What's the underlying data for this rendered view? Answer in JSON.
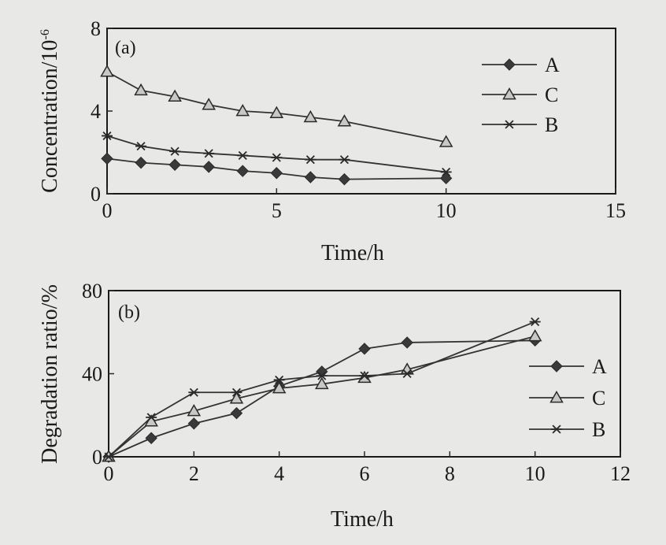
{
  "chart_data": [
    {
      "type": "line",
      "panel_label": "(a)",
      "title": "",
      "xlabel": "Time/h",
      "ylabel": "Concentration/10",
      "ylabel_sup": "-6",
      "xlim": [
        0,
        15
      ],
      "ylim": [
        0,
        8
      ],
      "xticks": [
        0,
        5,
        10,
        15
      ],
      "yticks": [
        0,
        4,
        8
      ],
      "grid": false,
      "legend_position": "top-right",
      "series": [
        {
          "name": "A",
          "marker": "diamond",
          "x": [
            0,
            1,
            2,
            3,
            4,
            5,
            6,
            7,
            10
          ],
          "y": [
            1.7,
            1.5,
            1.4,
            1.3,
            1.1,
            1.0,
            0.8,
            0.7,
            0.75
          ]
        },
        {
          "name": "C",
          "marker": "triangle",
          "x": [
            0,
            1,
            2,
            3,
            4,
            5,
            6,
            7,
            10
          ],
          "y": [
            5.9,
            5.0,
            4.7,
            4.3,
            4.0,
            3.9,
            3.7,
            3.5,
            2.5
          ]
        },
        {
          "name": "B",
          "marker": "asterisk",
          "x": [
            0,
            1,
            2,
            3,
            4,
            5,
            6,
            7,
            10
          ],
          "y": [
            2.8,
            2.3,
            2.05,
            1.95,
            1.85,
            1.75,
            1.65,
            1.65,
            1.05
          ]
        }
      ]
    },
    {
      "type": "line",
      "panel_label": "(b)",
      "title": "",
      "xlabel": "Time/h",
      "ylabel": "Degradation ratio/%",
      "xlim": [
        0,
        12
      ],
      "ylim": [
        0,
        80
      ],
      "xticks": [
        0,
        2,
        4,
        6,
        8,
        10,
        12
      ],
      "yticks": [
        0,
        40,
        80
      ],
      "grid": false,
      "legend_position": "bottom-right",
      "series": [
        {
          "name": "A",
          "marker": "diamond",
          "x": [
            0,
            1,
            2,
            3,
            4,
            5,
            6,
            7,
            10
          ],
          "y": [
            0,
            9,
            16,
            21,
            34,
            41,
            52,
            55,
            56
          ]
        },
        {
          "name": "C",
          "marker": "triangle",
          "x": [
            0,
            1,
            2,
            3,
            4,
            5,
            6,
            7,
            10
          ],
          "y": [
            0,
            17,
            22,
            28,
            33,
            35,
            38,
            42,
            58
          ]
        },
        {
          "name": "B",
          "marker": "asterisk",
          "x": [
            0,
            1,
            2,
            3,
            4,
            5,
            6,
            7,
            10
          ],
          "y": [
            0,
            19,
            31,
            31,
            37,
            39,
            39,
            40,
            65
          ]
        }
      ]
    }
  ]
}
